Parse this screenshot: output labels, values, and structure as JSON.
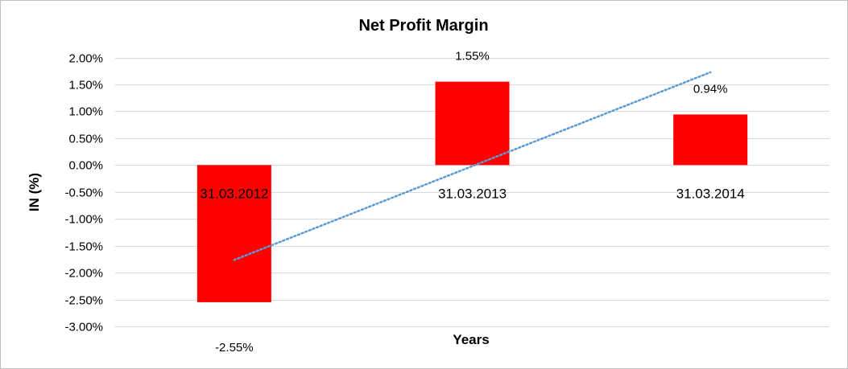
{
  "chart_data": {
    "type": "bar",
    "title": "Net Profit Margin",
    "xlabel": "Years",
    "ylabel": "IN (%)",
    "categories": [
      "31.03.2012",
      "31.03.2013",
      "31.03.2014"
    ],
    "values": [
      -2.55,
      1.55,
      0.94
    ],
    "data_labels": [
      "-2.55%",
      "1.55%",
      "0.94%"
    ],
    "ylim": [
      -3.0,
      2.0
    ],
    "ytick_labels": [
      "2.00%",
      "1.50%",
      "1.00%",
      "0.50%",
      "0.00%",
      "-0.50%",
      "-1.00%",
      "-1.50%",
      "-2.00%",
      "-2.50%",
      "-3.00%"
    ],
    "ytick_values": [
      2.0,
      1.5,
      1.0,
      0.5,
      0.0,
      -0.5,
      -1.0,
      -1.5,
      -2.0,
      -2.5,
      -3.0
    ],
    "bar_color": "#ff0000",
    "trendline": {
      "type": "linear",
      "style": "dotted",
      "color": "#5b9bd5"
    },
    "grid": true,
    "legend": "none"
  }
}
